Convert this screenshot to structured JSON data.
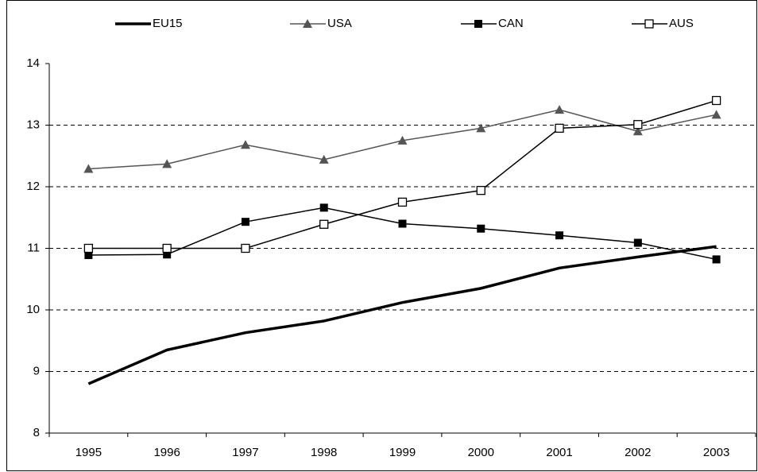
{
  "chart_data": {
    "type": "line",
    "categories": [
      "1995",
      "1996",
      "1997",
      "1998",
      "1999",
      "2000",
      "2001",
      "2002",
      "2003"
    ],
    "series": [
      {
        "name": "EU15",
        "color": "#000000",
        "marker": "none",
        "line_width": 3.5,
        "values": [
          8.8,
          9.35,
          9.63,
          9.82,
          10.12,
          10.35,
          10.68,
          10.86,
          11.03
        ]
      },
      {
        "name": "USA",
        "color": "#555555",
        "marker": "triangle",
        "line_width": 1.5,
        "values": [
          12.29,
          12.37,
          12.68,
          12.44,
          12.75,
          12.95,
          13.25,
          12.9,
          13.17
        ]
      },
      {
        "name": "CAN",
        "color": "#000000",
        "marker": "filled-square",
        "line_width": 1.5,
        "values": [
          10.89,
          10.9,
          11.43,
          11.66,
          11.4,
          11.32,
          11.21,
          11.09,
          10.82
        ]
      },
      {
        "name": "AUS",
        "color": "#000000",
        "marker": "open-square",
        "line_width": 1.5,
        "values": [
          11.0,
          11.0,
          11.0,
          11.39,
          11.75,
          11.94,
          12.95,
          13.01,
          13.4
        ]
      }
    ],
    "ylim": [
      8,
      14
    ],
    "yticks": [
      8,
      9,
      10,
      11,
      12,
      13,
      14
    ],
    "grid": true,
    "legend": "top"
  }
}
